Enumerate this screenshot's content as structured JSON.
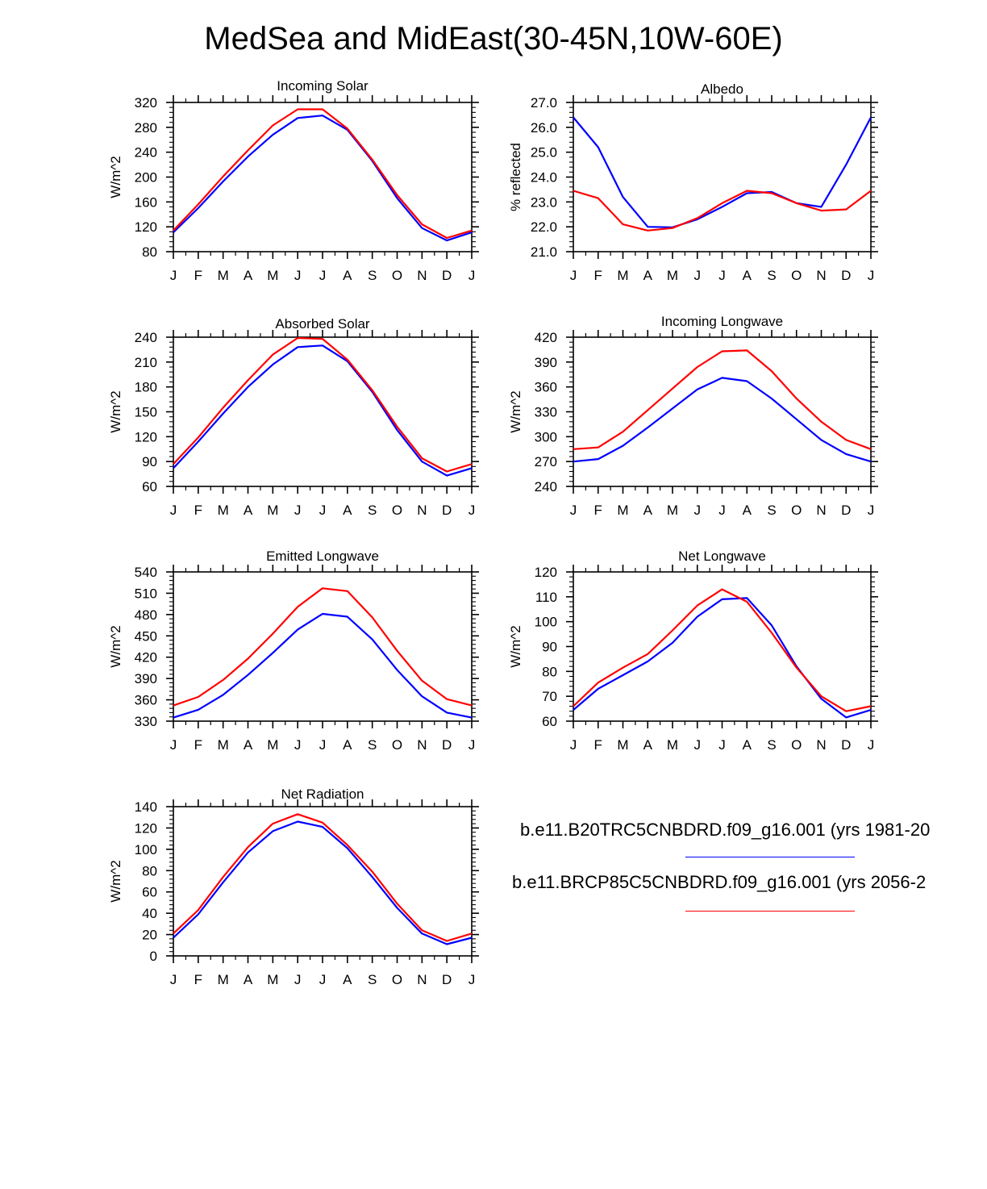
{
  "title": "MedSea and MidEast(30-45N,10W-60E)",
  "legend": [
    {
      "label": "b.e11.B20TRC5CNBDRD.f09_g16.001 (yrs 1981-20",
      "color": "#0000ff"
    },
    {
      "label": "b.e11.BRCP85C5CNBDRD.f09_g16.001 (yrs 2056-2",
      "color": "#ff0000"
    }
  ],
  "chart_data": [
    {
      "type": "line",
      "title": "Incoming Solar",
      "ylabel": "W/m^2",
      "categories": [
        "J",
        "F",
        "M",
        "A",
        "M",
        "J",
        "J",
        "A",
        "S",
        "O",
        "N",
        "D",
        "J"
      ],
      "ylim": [
        80,
        320
      ],
      "yticks": [
        "80",
        "120",
        "160",
        "200",
        "240",
        "280",
        "320"
      ],
      "series": [
        {
          "color": "#0000ff",
          "values": [
            111,
            150,
            193,
            233,
            268,
            295,
            299,
            276,
            226,
            166,
            118,
            98,
            111
          ]
        },
        {
          "color": "#ff0000",
          "values": [
            114,
            156,
            201,
            243,
            283,
            309,
            309,
            278,
            228,
            171,
            124,
            102,
            114
          ]
        }
      ]
    },
    {
      "type": "line",
      "title": "Albedo",
      "ylabel": "% reflected",
      "categories": [
        "J",
        "F",
        "M",
        "A",
        "M",
        "J",
        "J",
        "A",
        "S",
        "O",
        "N",
        "D",
        "J"
      ],
      "ylim": [
        21,
        27
      ],
      "yticks": [
        "21.0",
        "22.0",
        "23.0",
        "24.0",
        "25.0",
        "26.0",
        "27.0"
      ],
      "series": [
        {
          "color": "#0000ff",
          "values": [
            26.4,
            25.2,
            23.2,
            22.0,
            21.98,
            22.3,
            22.8,
            23.35,
            23.4,
            22.95,
            22.8,
            24.5,
            26.4
          ]
        },
        {
          "color": "#ff0000",
          "values": [
            23.45,
            23.15,
            22.1,
            21.85,
            21.95,
            22.35,
            22.95,
            23.45,
            23.35,
            22.95,
            22.65,
            22.7,
            23.45
          ]
        }
      ]
    },
    {
      "type": "line",
      "title": "Absorbed Solar",
      "ylabel": "W/m^2",
      "categories": [
        "J",
        "F",
        "M",
        "A",
        "M",
        "J",
        "J",
        "A",
        "S",
        "O",
        "N",
        "D",
        "J"
      ],
      "ylim": [
        60,
        240
      ],
      "yticks": [
        "60",
        "90",
        "120",
        "150",
        "180",
        "210",
        "240"
      ],
      "series": [
        {
          "color": "#0000ff",
          "values": [
            82,
            114,
            148,
            180,
            207,
            228,
            230,
            211,
            174,
            128,
            90,
            73,
            82
          ]
        },
        {
          "color": "#ff0000",
          "values": [
            87,
            119,
            155,
            188,
            219,
            239,
            238,
            213,
            176,
            132,
            94,
            78,
            87
          ]
        }
      ]
    },
    {
      "type": "line",
      "title": "Incoming Longwave",
      "ylabel": "W/m^2",
      "categories": [
        "J",
        "F",
        "M",
        "A",
        "M",
        "J",
        "J",
        "A",
        "S",
        "O",
        "N",
        "D",
        "J"
      ],
      "ylim": [
        240,
        420
      ],
      "yticks": [
        "240",
        "270",
        "300",
        "330",
        "360",
        "390",
        "420"
      ],
      "series": [
        {
          "color": "#0000ff",
          "values": [
            270,
            273,
            289,
            311,
            334,
            357,
            371,
            367,
            346,
            321,
            296,
            279,
            270
          ]
        },
        {
          "color": "#ff0000",
          "values": [
            285,
            287,
            306,
            332,
            358,
            384,
            403,
            404,
            379,
            346,
            318,
            296,
            285
          ]
        }
      ]
    },
    {
      "type": "line",
      "title": "Emitted Longwave",
      "ylabel": "W/m^2",
      "categories": [
        "J",
        "F",
        "M",
        "A",
        "M",
        "J",
        "J",
        "A",
        "S",
        "O",
        "N",
        "D",
        "J"
      ],
      "ylim": [
        330,
        540
      ],
      "yticks": [
        "330",
        "360",
        "390",
        "420",
        "450",
        "480",
        "510",
        "540"
      ],
      "series": [
        {
          "color": "#0000ff",
          "values": [
            335,
            346,
            367,
            395,
            426,
            459,
            481,
            477,
            445,
            402,
            365,
            342,
            335
          ]
        },
        {
          "color": "#ff0000",
          "values": [
            352,
            364,
            388,
            418,
            453,
            491,
            517,
            513,
            476,
            429,
            387,
            361,
            352
          ]
        }
      ]
    },
    {
      "type": "line",
      "title": "Net Longwave",
      "ylabel": "W/m^2",
      "categories": [
        "J",
        "F",
        "M",
        "A",
        "M",
        "J",
        "J",
        "A",
        "S",
        "O",
        "N",
        "D",
        "J"
      ],
      "ylim": [
        60,
        120
      ],
      "yticks": [
        "60",
        "70",
        "80",
        "90",
        "100",
        "110",
        "120"
      ],
      "series": [
        {
          "color": "#0000ff",
          "values": [
            64.5,
            73,
            78.5,
            84,
            91.5,
            102,
            109,
            109.5,
            98.5,
            82,
            69,
            61.5,
            64.5
          ]
        },
        {
          "color": "#ff0000",
          "values": [
            66,
            75.5,
            81.5,
            87,
            96.5,
            106.5,
            113,
            108,
            95.5,
            81.5,
            70,
            64,
            66
          ]
        }
      ]
    },
    {
      "type": "line",
      "title": "Net Radiation",
      "ylabel": "W/m^2",
      "categories": [
        "J",
        "F",
        "M",
        "A",
        "M",
        "J",
        "J",
        "A",
        "S",
        "O",
        "N",
        "D",
        "J"
      ],
      "ylim": [
        0,
        140
      ],
      "yticks": [
        "0",
        "20",
        "40",
        "60",
        "80",
        "100",
        "120",
        "140"
      ],
      "series": [
        {
          "color": "#0000ff",
          "values": [
            17,
            39,
            69,
            97,
            117,
            126,
            121,
            101,
            74,
            45,
            21,
            11,
            17
          ]
        },
        {
          "color": "#ff0000",
          "values": [
            21,
            43,
            74,
            102,
            124,
            133,
            125,
            104,
            79,
            49,
            24,
            14,
            21
          ]
        }
      ]
    }
  ]
}
